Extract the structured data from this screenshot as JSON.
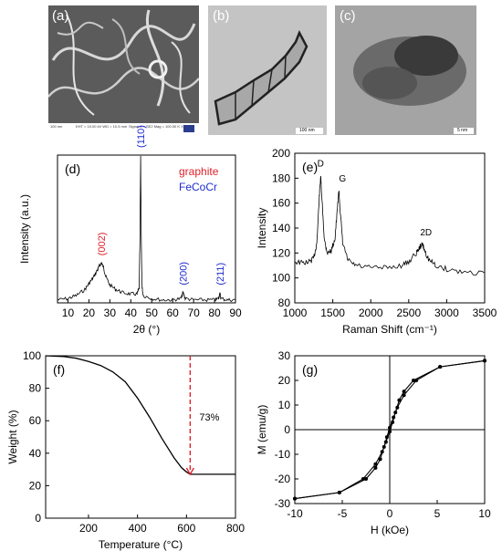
{
  "panels": {
    "a": {
      "label": "(a)",
      "scale_text": "100 nm",
      "info_left": "EHT = 10.00 kV  WD = 10.3 mm",
      "info_right": "Signal A = SE2  Mag = 100.00 K X"
    },
    "b": {
      "label": "(b)",
      "scale_text": "100 nm"
    },
    "c": {
      "label": "(c)",
      "scale_text": "5 nm"
    }
  },
  "colors": {
    "peak_graphite": "#e0202a",
    "peak_fecocr": "#1f2bd0",
    "tga_marker": "#e0202a",
    "line": "#000000"
  },
  "chart_data": [
    {
      "id": "d",
      "type": "line",
      "panel_label": "(d)",
      "xlabel": "2θ (°)",
      "ylabel": "Intensity (a.u.)",
      "xlim": [
        5,
        90
      ],
      "ylim": [
        0,
        1
      ],
      "xticks": [
        10,
        20,
        30,
        40,
        50,
        60,
        70,
        80,
        90
      ],
      "yticks": [],
      "legend": [
        {
          "text": "graphite",
          "color": "#e0202a"
        },
        {
          "text": "FeCoCr",
          "color": "#1f2bd0"
        }
      ],
      "legend_position": "top-right",
      "peaks": [
        {
          "label": "(002)",
          "x": 26,
          "color": "#e0202a"
        },
        {
          "label": "(110)",
          "x": 44.7,
          "color": "#1f2bd0"
        },
        {
          "label": "(200)",
          "x": 65,
          "color": "#1f2bd0"
        },
        {
          "label": "(211)",
          "x": 82.5,
          "color": "#1f2bd0"
        }
      ],
      "x": [
        5,
        10,
        14,
        18,
        20,
        22,
        24,
        25,
        26,
        27,
        28,
        30,
        33,
        36,
        40,
        43,
        44,
        44.4,
        44.7,
        45,
        45.4,
        46,
        50,
        55,
        60,
        64,
        65,
        66,
        70,
        75,
        80,
        82,
        82.5,
        83,
        86,
        90
      ],
      "y": [
        0.02,
        0.03,
        0.05,
        0.09,
        0.13,
        0.17,
        0.22,
        0.25,
        0.27,
        0.24,
        0.18,
        0.12,
        0.09,
        0.07,
        0.06,
        0.06,
        0.1,
        0.45,
        1.0,
        0.42,
        0.1,
        0.05,
        0.03,
        0.02,
        0.02,
        0.03,
        0.07,
        0.03,
        0.02,
        0.02,
        0.02,
        0.03,
        0.07,
        0.03,
        0.02,
        0.02
      ]
    },
    {
      "id": "e",
      "type": "line",
      "panel_label": "(e)",
      "xlabel": "Raman Shift (cm⁻¹)",
      "ylabel": "Intensity",
      "xlim": [
        1000,
        3500
      ],
      "ylim": [
        80,
        200
      ],
      "xticks": [
        1000,
        1500,
        2000,
        2500,
        3000,
        3500
      ],
      "yticks": [
        80,
        100,
        120,
        140,
        160,
        180,
        200
      ],
      "peaks": [
        {
          "label": "D",
          "x": 1340,
          "y": 182
        },
        {
          "label": "G",
          "x": 1580,
          "y": 170
        },
        {
          "label": "2D",
          "x": 2680,
          "y": 127
        }
      ],
      "x": [
        1000,
        1100,
        1200,
        1250,
        1290,
        1320,
        1340,
        1360,
        1390,
        1430,
        1480,
        1530,
        1560,
        1580,
        1600,
        1630,
        1700,
        1800,
        2000,
        2200,
        2400,
        2500,
        2600,
        2650,
        2680,
        2710,
        2760,
        2850,
        3000,
        3200,
        3500
      ],
      "y": [
        113,
        112,
        113,
        116,
        128,
        162,
        182,
        160,
        130,
        120,
        122,
        132,
        155,
        170,
        152,
        128,
        114,
        110,
        108,
        108,
        110,
        113,
        120,
        125,
        127,
        122,
        115,
        110,
        107,
        105,
        104
      ]
    },
    {
      "id": "f",
      "type": "line",
      "panel_label": "(f)",
      "xlabel": "Temperature (°C)",
      "ylabel": "Weight (%)",
      "xlim": [
        25,
        800
      ],
      "ylim": [
        0,
        100
      ],
      "xticks": [
        200,
        400,
        600,
        800
      ],
      "yticks": [
        0,
        20,
        40,
        60,
        80,
        100
      ],
      "annotation": {
        "text": "73%",
        "x": 615
      },
      "x": [
        25,
        100,
        150,
        200,
        250,
        300,
        350,
        400,
        450,
        500,
        550,
        580,
        600,
        615,
        650,
        700,
        800
      ],
      "y": [
        100,
        99.5,
        98.5,
        96.5,
        94,
        90,
        84,
        74,
        62,
        49,
        37,
        31,
        28.5,
        27,
        27,
        27,
        27
      ]
    },
    {
      "id": "g",
      "type": "line",
      "panel_label": "(g)",
      "xlabel": "H (kOe)",
      "ylabel": "M (emu/g)",
      "xlim": [
        -10,
        10
      ],
      "ylim": [
        -30,
        30
      ],
      "xticks": [
        -10,
        -5,
        0,
        5,
        10
      ],
      "yticks": [
        -30,
        -20,
        -10,
        0,
        10,
        20,
        30
      ],
      "series": [
        {
          "x": [
            10,
            5.3,
            2.8,
            1.5,
            0.8,
            0.4,
            0,
            -0.3,
            -0.6,
            -1.0,
            -1.5,
            -2.5,
            -5.3,
            -10
          ],
          "y": [
            28,
            25.5,
            20,
            14,
            9,
            5,
            0.8,
            -3,
            -7,
            -12,
            -15.5,
            -20,
            -25.5,
            -28
          ]
        },
        {
          "x": [
            -10,
            -5.3,
            -2.8,
            -1.5,
            -0.8,
            -0.4,
            0,
            0.3,
            0.6,
            1.0,
            1.5,
            2.5,
            5.3,
            10
          ],
          "y": [
            -28,
            -25.5,
            -20,
            -14,
            -9,
            -5,
            -0.8,
            3,
            7,
            12,
            15.5,
            20,
            25.5,
            28
          ]
        }
      ]
    }
  ]
}
